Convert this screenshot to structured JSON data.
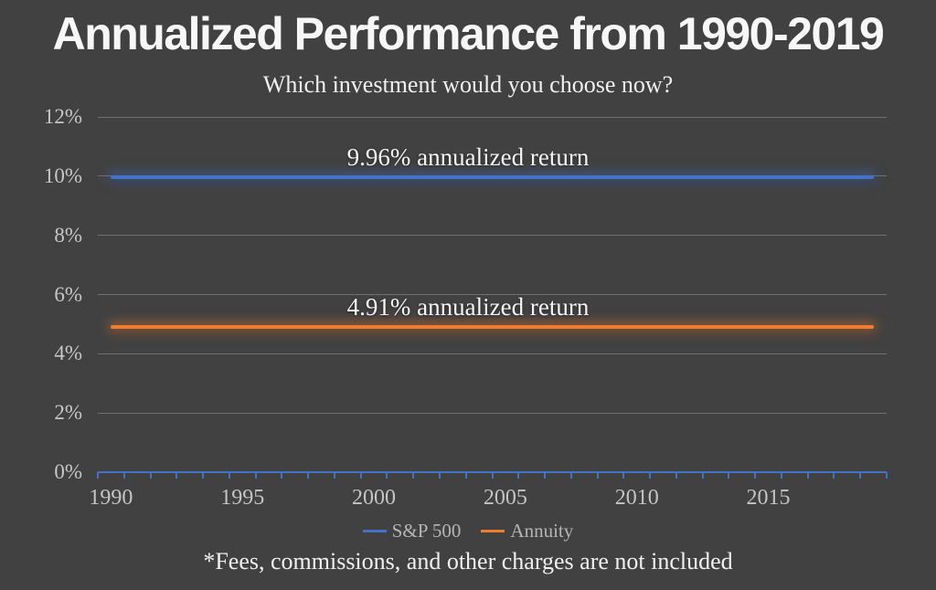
{
  "page": {
    "background": "#414141"
  },
  "chart_data": {
    "type": "line",
    "title": "Annualized Performance from 1990-2019",
    "subtitle": "Which investment would you choose now?",
    "footnote": "*Fees, commissions, and other charges are not included",
    "x_start": 1990,
    "x_end": 2019,
    "xticks": [
      1990,
      1995,
      2000,
      2005,
      2010,
      2015
    ],
    "ylim": [
      0,
      12
    ],
    "ytick_step": 2,
    "ytick_suffix": "%",
    "grid": true,
    "legend_position": "bottom",
    "axis_color": "#4472C4",
    "series": [
      {
        "name": "S&P 500",
        "constant_value": 9.96,
        "color": "#4472C4",
        "glow": "rgba(68,114,196,0.55)",
        "annotation": "9.96% annualized return"
      },
      {
        "name": "Annuity",
        "constant_value": 4.91,
        "color": "#ED7D31",
        "glow": "rgba(237,125,49,0.55)",
        "annotation": "4.91% annualized return"
      }
    ]
  }
}
